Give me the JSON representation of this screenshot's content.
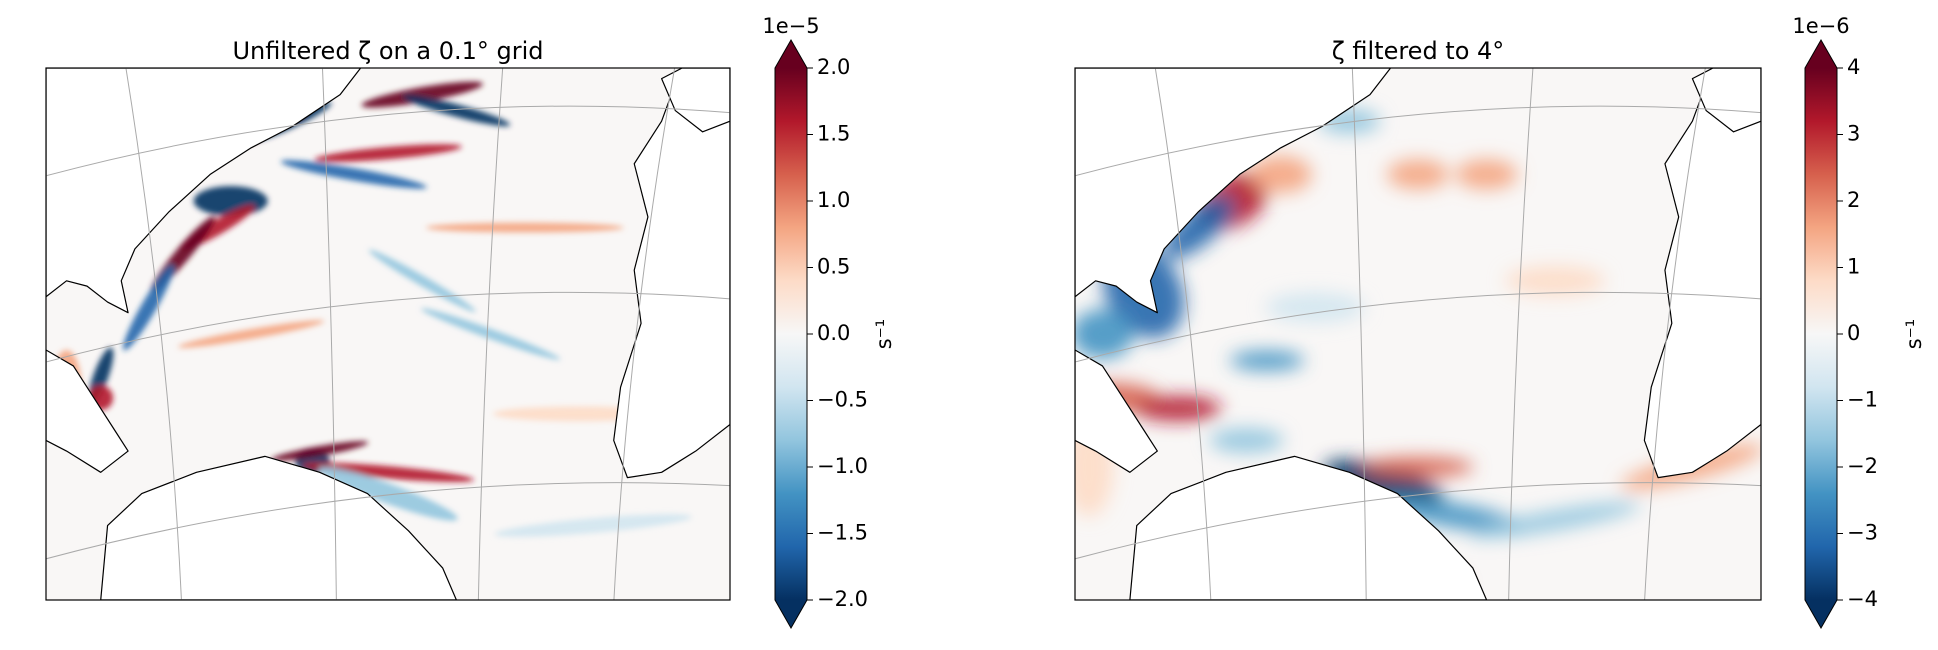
{
  "chart_data": [
    {
      "type": "heatmap",
      "title": "Unfiltered ζ on a 0.1° grid",
      "colorbar": {
        "offset_label": "1e−5",
        "label": "s⁻¹",
        "clim": [
          -2.0,
          2.0
        ],
        "extend": "both",
        "colors": [
          "#053061",
          "#2166ac",
          "#4393c3",
          "#92c5de",
          "#d1e5f0",
          "#f7f7f7",
          "#fddbc7",
          "#f4a582",
          "#d6604d",
          "#b2182b",
          "#67001f"
        ],
        "ticks": [
          {
            "value": -2.0,
            "label": "−2.0"
          },
          {
            "value": -1.5,
            "label": "−1.5"
          },
          {
            "value": -1.0,
            "label": "−1.0"
          },
          {
            "value": -0.5,
            "label": "−0.5"
          },
          {
            "value": 0.0,
            "label": "0.0"
          },
          0.5,
          {
            "value": 1.0,
            "label": "1.0"
          },
          1.5,
          {
            "value": 2.0,
            "label": "2.0"
          }
        ]
      }
    },
    {
      "type": "heatmap",
      "title": "ζ filtered to 4°",
      "colorbar": {
        "offset_label": "1e−6",
        "label": "s⁻¹",
        "clim": [
          -4,
          4
        ],
        "extend": "both",
        "colors": [
          "#053061",
          "#2166ac",
          "#4393c3",
          "#92c5de",
          "#d1e5f0",
          "#f7f7f7",
          "#fddbc7",
          "#f4a582",
          "#d6604d",
          "#b2182b",
          "#67001f"
        ],
        "ticks": [
          {
            "value": -4,
            "label": "−4"
          },
          {
            "value": -3,
            "label": "−3"
          },
          {
            "value": -2,
            "label": "−2"
          },
          {
            "value": -1,
            "label": "−1"
          },
          0,
          1,
          2,
          3,
          4
        ]
      }
    }
  ]
}
